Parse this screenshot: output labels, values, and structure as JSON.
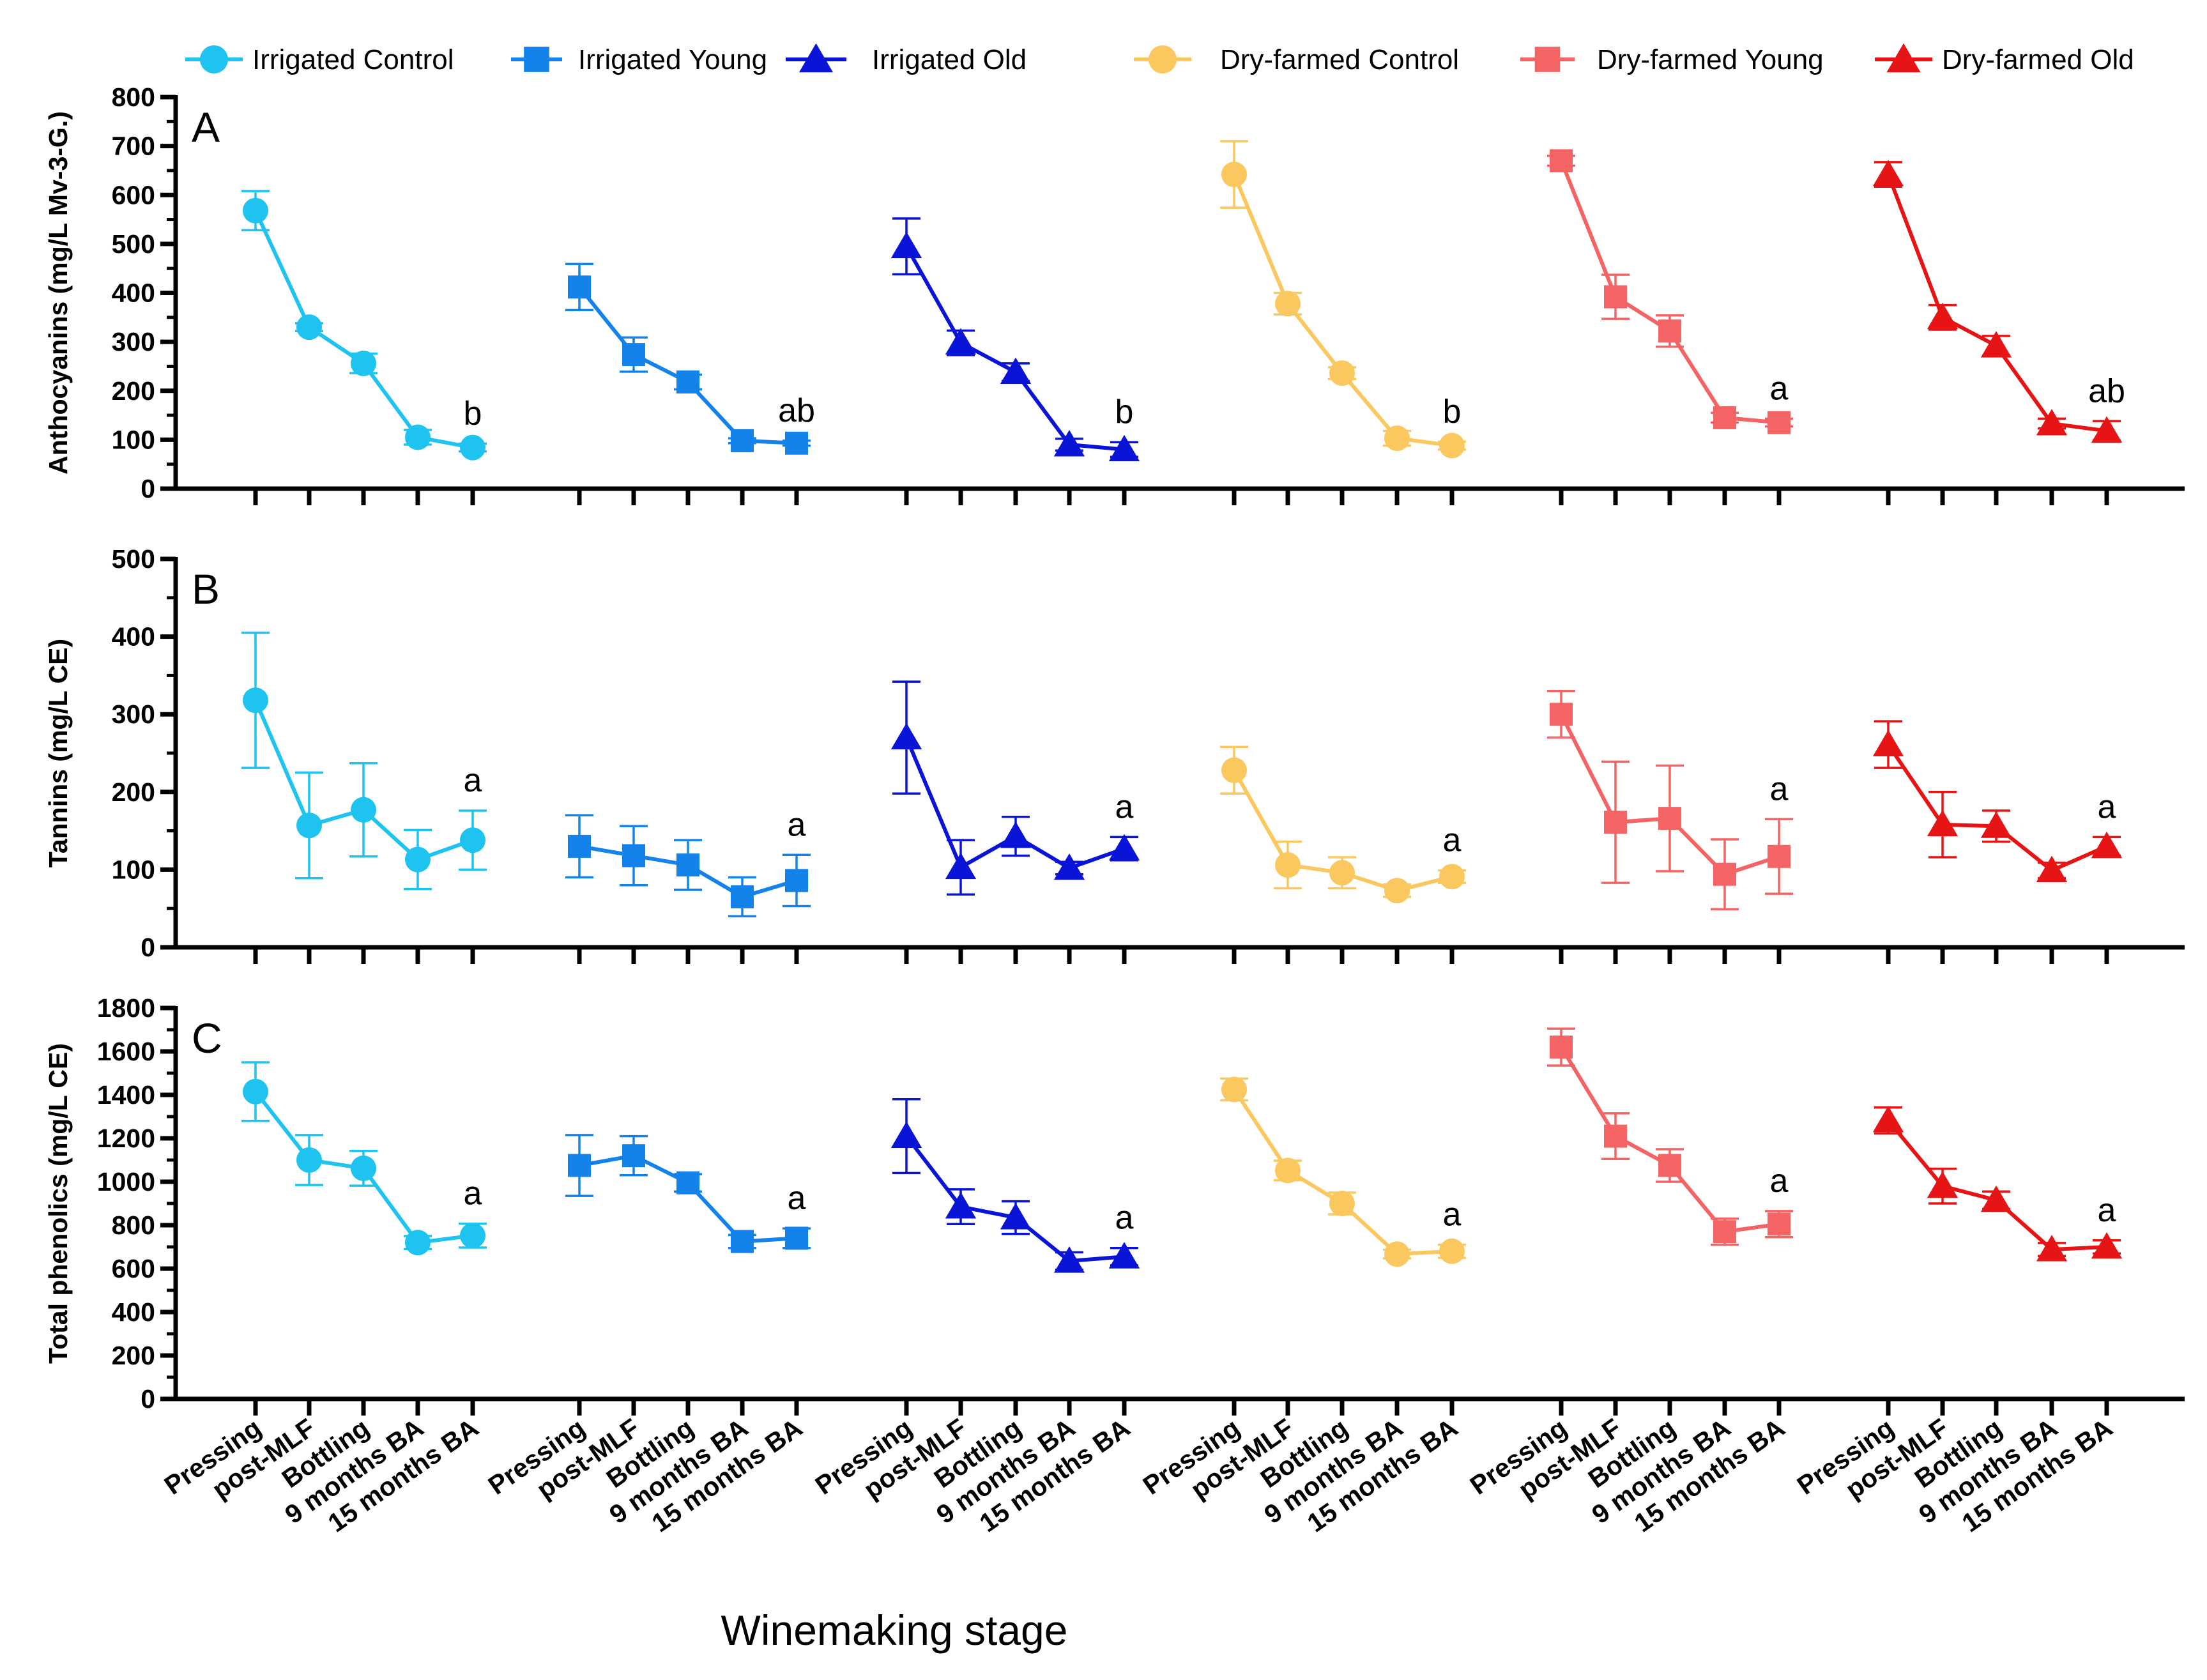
{
  "chart_data": {
    "type": "line",
    "xlabel": "Winemaking stage",
    "stages": [
      "Pressing",
      "post-MLF",
      "Bottling",
      "9 months BA",
      "15 months BA"
    ],
    "series": [
      {
        "name": "Irrigated Control",
        "color": "#1EC3F0",
        "marker": "circle"
      },
      {
        "name": "Irrigated Young",
        "color": "#1482EB",
        "marker": "square"
      },
      {
        "name": "Irrigated Old",
        "color": "#0A14D7",
        "marker": "triangle"
      },
      {
        "name": "Dry-farmed Control",
        "color": "#FAC85F",
        "marker": "circle"
      },
      {
        "name": "Dry-farmed Young",
        "color": "#F56464",
        "marker": "square"
      },
      {
        "name": "Dry-farmed Old",
        "color": "#E61414",
        "marker": "triangle"
      }
    ],
    "panels": [
      {
        "letter": "A",
        "ylabel": "Anthocyanins (mg/L Mv-3-G.)",
        "ylim": [
          0,
          800
        ],
        "ticks": [
          0,
          100,
          200,
          300,
          400,
          500,
          600,
          700,
          800
        ],
        "values": [
          [
            568,
            330,
            256,
            105,
            84
          ],
          [
            412,
            274,
            218,
            98,
            93
          ],
          [
            495,
            298,
            238,
            90,
            80
          ],
          [
            642,
            378,
            236,
            103,
            88
          ],
          [
            670,
            392,
            322,
            145,
            135
          ],
          [
            642,
            350,
            292,
            133,
            118
          ]
        ],
        "errors": [
          [
            40,
            8,
            20,
            15,
            8
          ],
          [
            47,
            35,
            15,
            5,
            5
          ],
          [
            57,
            25,
            18,
            12,
            15
          ],
          [
            68,
            22,
            12,
            15,
            8
          ],
          [
            10,
            45,
            32,
            10,
            8
          ],
          [
            25,
            25,
            20,
            10,
            20
          ]
        ],
        "letters": [
          "b",
          "ab",
          "b",
          "b",
          "a",
          "ab"
        ]
      },
      {
        "letter": "B",
        "ylabel": "Tannins (mg/L CE)",
        "ylim": [
          0,
          500
        ],
        "ticks": [
          0,
          100,
          200,
          300,
          400,
          500
        ],
        "values": [
          [
            318,
            157,
            177,
            113,
            138
          ],
          [
            130,
            118,
            106,
            65,
            86
          ],
          [
            270,
            103,
            143,
            102,
            127
          ],
          [
            228,
            106,
            96,
            73,
            91
          ],
          [
            300,
            161,
            166,
            94,
            117
          ],
          [
            261,
            158,
            156,
            99,
            130
          ]
        ],
        "errors": [
          [
            87,
            68,
            60,
            38,
            38
          ],
          [
            40,
            38,
            32,
            25,
            33
          ],
          [
            72,
            35,
            25,
            8,
            15
          ],
          [
            30,
            30,
            20,
            8,
            8
          ],
          [
            30,
            78,
            68,
            45,
            48
          ],
          [
            30,
            42,
            20,
            10,
            12
          ]
        ],
        "letters": [
          "a",
          "a",
          "a",
          "a",
          "a",
          "a"
        ]
      },
      {
        "letter": "C",
        "ylabel": "Total phenolics (mg/L CE)",
        "ylim": [
          0,
          1800
        ],
        "ticks": [
          0,
          200,
          400,
          600,
          800,
          1000,
          1200,
          1400,
          1600,
          1800
        ],
        "values": [
          [
            1415,
            1100,
            1062,
            720,
            752
          ],
          [
            1075,
            1120,
            995,
            725,
            740
          ],
          [
            1210,
            885,
            835,
            635,
            655
          ],
          [
            1425,
            1052,
            900,
            667,
            680
          ],
          [
            1620,
            1210,
            1075,
            770,
            805
          ],
          [
            1282,
            980,
            915,
            688,
            700
          ]
        ],
        "errors": [
          [
            135,
            115,
            80,
            30,
            55
          ],
          [
            140,
            90,
            40,
            30,
            45
          ],
          [
            170,
            80,
            75,
            40,
            40
          ],
          [
            50,
            45,
            50,
            20,
            30
          ],
          [
            85,
            105,
            75,
            60,
            60
          ],
          [
            60,
            80,
            40,
            30,
            30
          ]
        ],
        "letters": [
          "a",
          "a",
          "a",
          "a",
          "a",
          "a"
        ]
      }
    ]
  }
}
